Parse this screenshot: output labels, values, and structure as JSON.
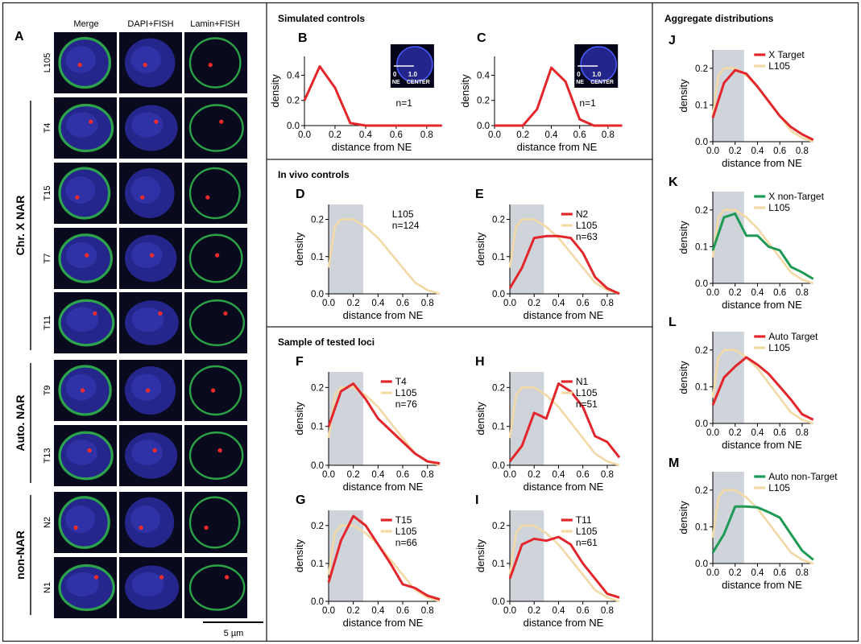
{
  "colors": {
    "red": "#e3262b",
    "tan": "#f2d9a6",
    "green": "#1e9a55",
    "shade": "#cfd3da",
    "nucleus": "#2a2ca0",
    "lamin": "#2fb24a",
    "fish": "#ff2a2a",
    "label_cell": "#0a0a1e"
  },
  "panel_a": {
    "letter": "A",
    "columns": [
      "Merge",
      "DAPI+FISH",
      "Lamin+FISH"
    ],
    "groups": [
      {
        "label": "",
        "rows": [
          "L105"
        ]
      },
      {
        "label": "Chr. X NAR",
        "rows": [
          "T4",
          "T15",
          "T7",
          "T11"
        ]
      },
      {
        "label": "Auto. NAR",
        "rows": [
          "T9",
          "T13"
        ]
      },
      {
        "label": "non-NAR",
        "rows": [
          "N2",
          "N1"
        ]
      }
    ],
    "scalebar": "5 µm"
  },
  "section_titles": {
    "simulated": "Simulated controls",
    "invivo": "In vivo controls",
    "sample": "Sample of tested loci",
    "aggregate": "Aggregate distributions"
  },
  "axis_common": {
    "xlabel": "distance from NE",
    "ylabel": "density",
    "xticks": [
      "0.0",
      "0.2",
      "0.4",
      "0.6",
      "0.8"
    ]
  },
  "chart_data": [
    {
      "id": "B",
      "type": "line",
      "yticks": [
        "0.0",
        "0.2",
        "0.4"
      ],
      "ylim": [
        0,
        0.55
      ],
      "note": "n=1",
      "inset": {
        "left": "0",
        "left2": "NE",
        "right": "1.0",
        "right2": "CENTER"
      },
      "series": [
        {
          "name": "",
          "color": "red",
          "x": [
            0,
            0.1,
            0.2,
            0.3,
            0.4,
            0.5,
            0.6,
            0.7,
            0.8,
            0.9
          ],
          "y": [
            0.2,
            0.47,
            0.3,
            0.02,
            0,
            0,
            0,
            0,
            0,
            0
          ]
        }
      ]
    },
    {
      "id": "C",
      "type": "line",
      "yticks": [
        "0.0",
        "0.2",
        "0.4"
      ],
      "ylim": [
        0,
        0.55
      ],
      "note": "n=1",
      "inset": {
        "left": "0",
        "left2": "NE",
        "right": "1.0",
        "right2": "CENTER"
      },
      "series": [
        {
          "name": "",
          "color": "red",
          "x": [
            0,
            0.1,
            0.2,
            0.3,
            0.4,
            0.5,
            0.6,
            0.7,
            0.8,
            0.9
          ],
          "y": [
            0,
            0,
            0,
            0.13,
            0.46,
            0.35,
            0.05,
            0,
            0,
            0
          ]
        }
      ]
    },
    {
      "id": "D",
      "type": "line",
      "yticks": [
        "0.0",
        "0.1",
        "0.2"
      ],
      "ylim": [
        0,
        0.24
      ],
      "shade": [
        0,
        0.28
      ],
      "note": "n=124",
      "series": [
        {
          "name": "L105",
          "color": "tan",
          "x": [
            0,
            0.05,
            0.1,
            0.2,
            0.3,
            0.4,
            0.5,
            0.6,
            0.7,
            0.8,
            0.9
          ],
          "y": [
            0.07,
            0.18,
            0.2,
            0.2,
            0.18,
            0.15,
            0.11,
            0.07,
            0.03,
            0.01,
            0
          ]
        }
      ]
    },
    {
      "id": "E",
      "type": "line",
      "yticks": [
        "0.0",
        "0.1",
        "0.2"
      ],
      "ylim": [
        0,
        0.24
      ],
      "shade": [
        0,
        0.28
      ],
      "note": "n=63",
      "series": [
        {
          "name": "N2",
          "color": "red",
          "x": [
            0,
            0.1,
            0.2,
            0.3,
            0.4,
            0.5,
            0.6,
            0.7,
            0.8,
            0.9
          ],
          "y": [
            0.015,
            0.07,
            0.15,
            0.155,
            0.155,
            0.15,
            0.11,
            0.045,
            0.015,
            0
          ]
        },
        {
          "name": "L105",
          "color": "tan",
          "x": [
            0,
            0.05,
            0.1,
            0.2,
            0.3,
            0.4,
            0.5,
            0.6,
            0.7,
            0.8,
            0.9
          ],
          "y": [
            0.07,
            0.18,
            0.2,
            0.2,
            0.18,
            0.15,
            0.11,
            0.07,
            0.03,
            0.01,
            0
          ]
        }
      ]
    },
    {
      "id": "F",
      "type": "line",
      "yticks": [
        "0.0",
        "0.1",
        "0.2"
      ],
      "ylim": [
        0,
        0.24
      ],
      "shade": [
        0,
        0.28
      ],
      "note": "n=76",
      "series": [
        {
          "name": "T4",
          "color": "red",
          "x": [
            0,
            0.1,
            0.2,
            0.3,
            0.4,
            0.5,
            0.6,
            0.7,
            0.8,
            0.9
          ],
          "y": [
            0.1,
            0.19,
            0.21,
            0.17,
            0.12,
            0.09,
            0.06,
            0.03,
            0.01,
            0.005
          ]
        },
        {
          "name": "L105",
          "color": "tan",
          "x": [
            0,
            0.05,
            0.1,
            0.2,
            0.3,
            0.4,
            0.5,
            0.6,
            0.7,
            0.8,
            0.9
          ],
          "y": [
            0.07,
            0.18,
            0.2,
            0.2,
            0.18,
            0.15,
            0.11,
            0.07,
            0.03,
            0.01,
            0
          ]
        }
      ]
    },
    {
      "id": "H",
      "type": "line",
      "yticks": [
        "0.0",
        "0.1",
        "0.2"
      ],
      "ylim": [
        0,
        0.24
      ],
      "shade": [
        0,
        0.28
      ],
      "note": "n=51",
      "series": [
        {
          "name": "N1",
          "color": "red",
          "x": [
            0,
            0.1,
            0.2,
            0.3,
            0.4,
            0.5,
            0.6,
            0.7,
            0.8,
            0.9
          ],
          "y": [
            0.01,
            0.05,
            0.135,
            0.12,
            0.21,
            0.19,
            0.15,
            0.075,
            0.06,
            0.02
          ]
        },
        {
          "name": "L105",
          "color": "tan",
          "x": [
            0,
            0.05,
            0.1,
            0.2,
            0.3,
            0.4,
            0.5,
            0.6,
            0.7,
            0.8,
            0.9
          ],
          "y": [
            0.07,
            0.18,
            0.2,
            0.2,
            0.18,
            0.15,
            0.11,
            0.07,
            0.03,
            0.01,
            0
          ]
        }
      ]
    },
    {
      "id": "G",
      "type": "line",
      "yticks": [
        "0.0",
        "0.1",
        "0.2"
      ],
      "ylim": [
        0,
        0.24
      ],
      "shade": [
        0,
        0.28
      ],
      "note": "n=66",
      "series": [
        {
          "name": "T15",
          "color": "red",
          "x": [
            0,
            0.1,
            0.2,
            0.3,
            0.4,
            0.5,
            0.6,
            0.7,
            0.8,
            0.9
          ],
          "y": [
            0.05,
            0.16,
            0.225,
            0.2,
            0.15,
            0.1,
            0.045,
            0.035,
            0.015,
            0.005
          ]
        },
        {
          "name": "L105",
          "color": "tan",
          "x": [
            0,
            0.05,
            0.1,
            0.2,
            0.3,
            0.4,
            0.5,
            0.6,
            0.7,
            0.8,
            0.9
          ],
          "y": [
            0.07,
            0.18,
            0.2,
            0.2,
            0.18,
            0.15,
            0.11,
            0.07,
            0.03,
            0.01,
            0
          ]
        }
      ]
    },
    {
      "id": "I",
      "type": "line",
      "yticks": [
        "0.0",
        "0.1",
        "0.2"
      ],
      "ylim": [
        0,
        0.24
      ],
      "shade": [
        0,
        0.28
      ],
      "note": "n=61",
      "series": [
        {
          "name": "T11",
          "color": "red",
          "x": [
            0,
            0.1,
            0.2,
            0.3,
            0.4,
            0.5,
            0.6,
            0.7,
            0.8,
            0.9
          ],
          "y": [
            0.06,
            0.15,
            0.165,
            0.16,
            0.17,
            0.15,
            0.1,
            0.06,
            0.02,
            0.01
          ]
        },
        {
          "name": "L105",
          "color": "tan",
          "x": [
            0,
            0.05,
            0.1,
            0.2,
            0.3,
            0.4,
            0.5,
            0.6,
            0.7,
            0.8,
            0.9
          ],
          "y": [
            0.07,
            0.18,
            0.2,
            0.2,
            0.18,
            0.15,
            0.11,
            0.07,
            0.03,
            0.01,
            0
          ]
        }
      ]
    },
    {
      "id": "J",
      "type": "line",
      "yticks": [
        "0.0",
        "0.1",
        "0.2"
      ],
      "ylim": [
        0,
        0.25
      ],
      "shade": [
        0,
        0.28
      ],
      "note": "",
      "series": [
        {
          "name": "X Target",
          "color": "red",
          "x": [
            0,
            0.1,
            0.2,
            0.3,
            0.4,
            0.5,
            0.6,
            0.7,
            0.8,
            0.9
          ],
          "y": [
            0.065,
            0.16,
            0.195,
            0.185,
            0.15,
            0.11,
            0.07,
            0.04,
            0.02,
            0.005
          ]
        },
        {
          "name": "L105",
          "color": "tan",
          "x": [
            0,
            0.05,
            0.1,
            0.2,
            0.3,
            0.4,
            0.5,
            0.6,
            0.7,
            0.8,
            0.9
          ],
          "y": [
            0.07,
            0.18,
            0.2,
            0.2,
            0.18,
            0.15,
            0.11,
            0.07,
            0.03,
            0.01,
            0
          ]
        }
      ]
    },
    {
      "id": "K",
      "type": "line",
      "yticks": [
        "0.0",
        "0.1",
        "0.2"
      ],
      "ylim": [
        0,
        0.25
      ],
      "shade": [
        0,
        0.28
      ],
      "note": "",
      "series": [
        {
          "name": "X non-Target",
          "color": "green",
          "x": [
            0,
            0.1,
            0.2,
            0.3,
            0.4,
            0.5,
            0.6,
            0.7,
            0.8,
            0.9
          ],
          "y": [
            0.09,
            0.18,
            0.19,
            0.13,
            0.13,
            0.1,
            0.09,
            0.045,
            0.03,
            0.012
          ]
        },
        {
          "name": "L105",
          "color": "tan",
          "x": [
            0,
            0.05,
            0.1,
            0.2,
            0.3,
            0.4,
            0.5,
            0.6,
            0.7,
            0.8,
            0.9
          ],
          "y": [
            0.07,
            0.18,
            0.2,
            0.2,
            0.18,
            0.15,
            0.11,
            0.07,
            0.03,
            0.01,
            0
          ]
        }
      ]
    },
    {
      "id": "L",
      "type": "line",
      "yticks": [
        "0.0",
        "0.1",
        "0.2"
      ],
      "ylim": [
        0,
        0.25
      ],
      "shade": [
        0,
        0.28
      ],
      "note": "",
      "series": [
        {
          "name": "Auto Target",
          "color": "red",
          "x": [
            0,
            0.1,
            0.2,
            0.3,
            0.4,
            0.5,
            0.6,
            0.7,
            0.8,
            0.9
          ],
          "y": [
            0.05,
            0.125,
            0.155,
            0.18,
            0.16,
            0.135,
            0.1,
            0.065,
            0.025,
            0.01
          ]
        },
        {
          "name": "L105",
          "color": "tan",
          "x": [
            0,
            0.05,
            0.1,
            0.2,
            0.3,
            0.4,
            0.5,
            0.6,
            0.7,
            0.8,
            0.9
          ],
          "y": [
            0.07,
            0.18,
            0.2,
            0.2,
            0.18,
            0.15,
            0.11,
            0.07,
            0.03,
            0.01,
            0
          ]
        }
      ]
    },
    {
      "id": "M",
      "type": "line",
      "yticks": [
        "0.0",
        "0.1",
        "0.2"
      ],
      "ylim": [
        0,
        0.25
      ],
      "shade": [
        0,
        0.28
      ],
      "note": "",
      "series": [
        {
          "name": "Auto non-Target",
          "color": "green",
          "x": [
            0,
            0.1,
            0.2,
            0.3,
            0.4,
            0.5,
            0.6,
            0.7,
            0.8,
            0.9
          ],
          "y": [
            0.03,
            0.08,
            0.155,
            0.155,
            0.153,
            0.14,
            0.125,
            0.08,
            0.035,
            0.01
          ]
        },
        {
          "name": "L105",
          "color": "tan",
          "x": [
            0,
            0.05,
            0.1,
            0.2,
            0.3,
            0.4,
            0.5,
            0.6,
            0.7,
            0.8,
            0.9
          ],
          "y": [
            0.07,
            0.18,
            0.2,
            0.2,
            0.18,
            0.15,
            0.11,
            0.07,
            0.03,
            0.01,
            0
          ]
        }
      ]
    }
  ]
}
